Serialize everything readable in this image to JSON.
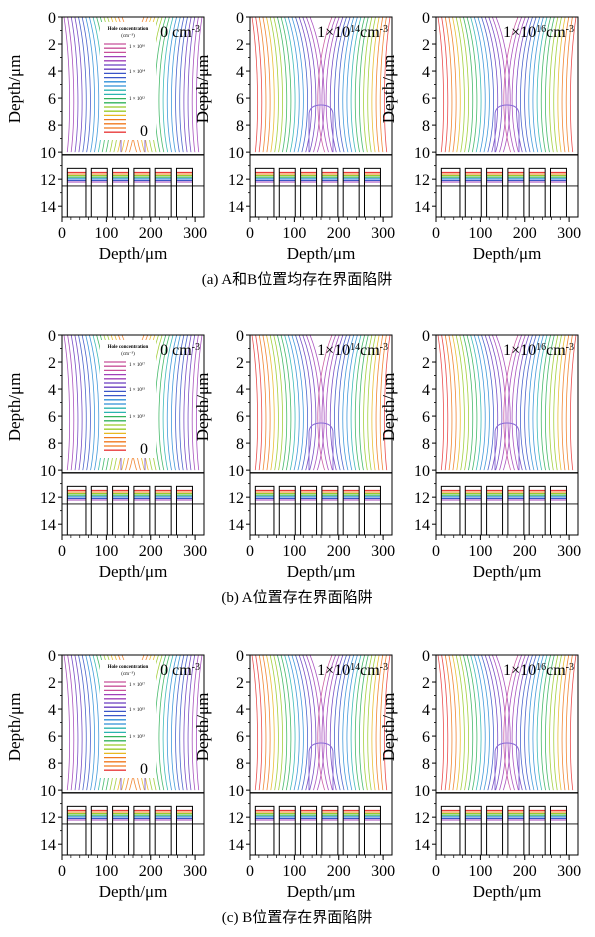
{
  "figure": {
    "rows": [
      {
        "caption": "(a) A和B位置均存在界面陷阱",
        "panels": [
          {
            "overlay": "0 cm-3",
            "legend": {
              "title": "Hole concentration",
              "unit": "(cm⁻³)",
              "entries": [
                "1 × 10¹⁶",
                "1 × 10¹⁴",
                "1 × 10¹²",
                "0"
              ]
            }
          },
          {
            "overlay": "1×1014cm-3"
          },
          {
            "overlay": "1×1016cm-3"
          }
        ]
      },
      {
        "caption": "(b) A位置存在界面陷阱",
        "panels": [
          {
            "overlay": "0 cm-3",
            "legend": {
              "title": "Hole concentration",
              "unit": "(cm⁻³)",
              "entries": [
                "1 × 10¹⁷",
                "1 × 10¹⁵",
                "1 × 10¹³",
                "0"
              ]
            }
          },
          {
            "overlay": "1×1014cm-3"
          },
          {
            "overlay": "1×1016cm-3"
          }
        ]
      },
      {
        "caption": "(c) B位置存在界面陷阱",
        "panels": [
          {
            "overlay": "0 cm-3",
            "legend": {
              "title": "Hole concentration",
              "unit": "(cm⁻³)",
              "entries": [
                "1 × 10¹⁷",
                "1 × 10¹⁵",
                "1 × 10¹³",
                "0"
              ]
            }
          },
          {
            "overlay": "1×1014cm-3"
          },
          {
            "overlay": "1×1016cm-3"
          }
        ]
      }
    ],
    "axes": {
      "y_label": "Depth/μm",
      "x_label": "Depth/μm",
      "y_ticks": [
        "0",
        "2",
        "4",
        "6",
        "8",
        "10",
        "12",
        "14"
      ],
      "x_ticks": [
        "0",
        "100",
        "200",
        "300"
      ]
    }
  },
  "chart_data": [
    {
      "type": "contour",
      "title": "0 cm-3",
      "xlabel": "Depth/μm",
      "ylabel": "Depth/μm",
      "xlim": [
        0,
        320
      ],
      "ylim": [
        14.8,
        0
      ],
      "series": [
        {
          "name": "Hole concentration",
          "levels": [
            "0",
            "1 × 10¹²",
            "1 × 10¹⁴",
            "1 × 10¹⁶"
          ]
        }
      ]
    },
    {
      "type": "contour",
      "title": "1×1014cm-3",
      "xlabel": "Depth/μm",
      "ylabel": "Depth/μm",
      "xlim": [
        0,
        320
      ],
      "ylim": [
        14.8,
        0
      ]
    },
    {
      "type": "contour",
      "title": "1×1016cm-3",
      "xlabel": "Depth/μm",
      "ylabel": "Depth/μm",
      "xlim": [
        0,
        320
      ],
      "ylim": [
        14.8,
        0
      ]
    },
    {
      "type": "contour",
      "title": "0 cm-3",
      "xlabel": "Depth/μm",
      "ylabel": "Depth/μm",
      "xlim": [
        0,
        320
      ],
      "ylim": [
        14.8,
        0
      ],
      "series": [
        {
          "name": "Hole concentration",
          "levels": [
            "0",
            "1 × 10¹³",
            "1 × 10¹⁵",
            "1 × 10¹⁷"
          ]
        }
      ]
    },
    {
      "type": "contour",
      "title": "1×1014cm-3",
      "xlabel": "Depth/μm",
      "ylabel": "Depth/μm",
      "xlim": [
        0,
        320
      ],
      "ylim": [
        14.8,
        0
      ]
    },
    {
      "type": "contour",
      "title": "1×1016cm-3",
      "xlabel": "Depth/μm",
      "ylabel": "Depth/μm",
      "xlim": [
        0,
        320
      ],
      "ylim": [
        14.8,
        0
      ]
    },
    {
      "type": "contour",
      "title": "0 cm-3",
      "xlabel": "Depth/μm",
      "ylabel": "Depth/μm",
      "xlim": [
        0,
        320
      ],
      "ylim": [
        14.8,
        0
      ],
      "series": [
        {
          "name": "Hole concentration",
          "levels": [
            "0",
            "1 × 10¹³",
            "1 × 10¹⁵",
            "1 × 10¹⁷"
          ]
        }
      ]
    },
    {
      "type": "contour",
      "title": "1×1014cm-3",
      "xlabel": "Depth/μm",
      "ylabel": "Depth/μm",
      "xlim": [
        0,
        320
      ],
      "ylim": [
        14.8,
        0
      ]
    },
    {
      "type": "contour",
      "title": "1×1016cm-3",
      "xlabel": "Depth/μm",
      "ylabel": "Depth/μm",
      "xlim": [
        0,
        320
      ],
      "ylim": [
        14.8,
        0
      ]
    }
  ]
}
